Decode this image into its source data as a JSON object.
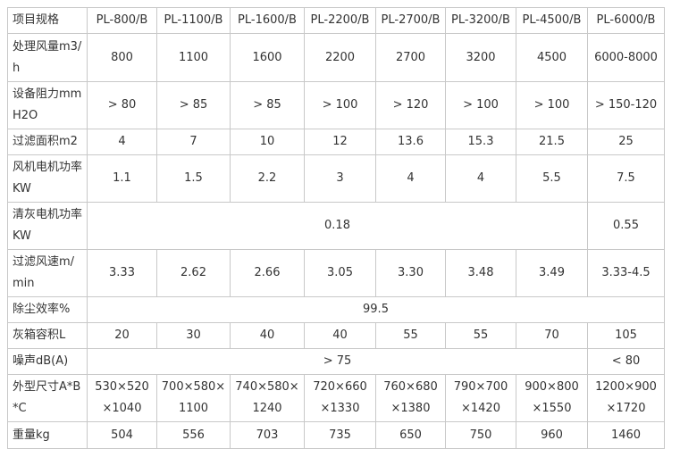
{
  "table": {
    "header": [
      "项目规格",
      "PL-800/B",
      "PL-1100/B",
      "PL-1600/B",
      "PL-2200/B",
      "PL-2700/B",
      "PL-3200/B",
      "PL-4500/B",
      "PL-6000/B"
    ],
    "rows": [
      [
        "处理风量m3/h",
        "800",
        "1100",
        "1600",
        "2200",
        "2700",
        "3200",
        "4500",
        "6000-8000"
      ],
      [
        "设备阻力mmH2O",
        "> 80",
        "> 85",
        "> 85",
        "> 100",
        "> 120",
        "> 100",
        "> 100",
        "> 150-120"
      ],
      [
        "过滤面积m2",
        "4",
        "7",
        "10",
        "12",
        "13.6",
        "15.3",
        "21.5",
        "25"
      ],
      [
        "风机电机功率KW",
        "1.1",
        "1.5",
        "2.2",
        "3",
        "4",
        "4",
        "5.5",
        "7.5"
      ],
      [
        "清灰电机功率KW",
        "0.18",
        "0.55"
      ],
      [
        "过滤风速m/min",
        "3.33",
        "2.62",
        "2.66",
        "3.05",
        "3.30",
        "3.48",
        "3.49",
        "3.33-4.5"
      ],
      [
        "除尘效率%",
        "99.5"
      ],
      [
        "灰箱容积L",
        "20",
        "30",
        "40",
        "40",
        "55",
        "55",
        "70",
        "105"
      ],
      [
        "噪声dB(A)",
        "> 75",
        "< 80"
      ],
      [
        "外型尺寸A*B*C",
        "530×520×1040",
        "700×580×1100",
        "740×580×1240",
        "720×660×1330",
        "760×680×1380",
        "790×700×1420",
        "900×800×1550",
        "1200×900×1720"
      ],
      [
        "重量kg",
        "504",
        "556",
        "703",
        "735",
        "650",
        "750",
        "960",
        "1460"
      ]
    ]
  }
}
